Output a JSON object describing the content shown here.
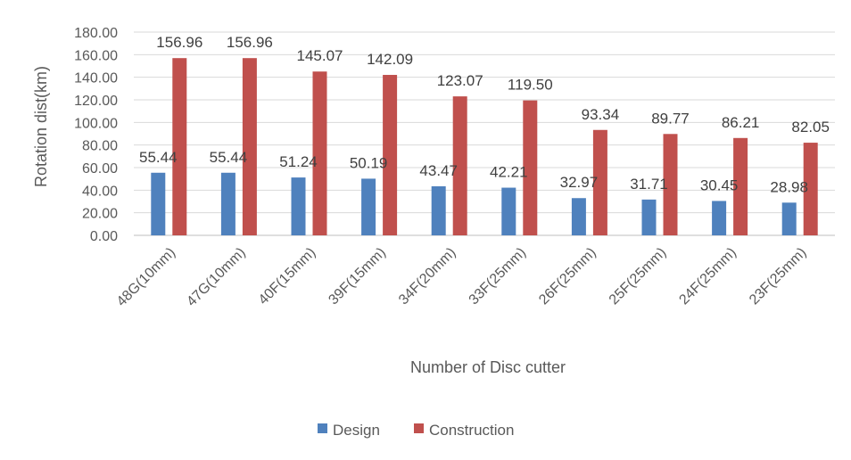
{
  "chart_data": {
    "type": "bar",
    "title": "",
    "xlabel": "Number  of Disc cutter",
    "ylabel": "Rotation dist(km)",
    "ylim": [
      0,
      180
    ],
    "yticks": [
      "0.00",
      "20.00",
      "40.00",
      "60.00",
      "80.00",
      "100.00",
      "120.00",
      "140.00",
      "160.00",
      "180.00"
    ],
    "grid": true,
    "legend_position": "bottom",
    "categories": [
      "48G(10mm)",
      "47G(10mm)",
      "40F(15mm)",
      "39F(15mm)",
      "34F(20mm)",
      "33F(25mm)",
      "26F(25mm)",
      "25F(25mm)",
      "24F(25mm)",
      "23F(25mm)"
    ],
    "series": [
      {
        "name": "Design",
        "color": "#4f81bd",
        "values": [
          55.44,
          55.44,
          51.24,
          50.19,
          43.47,
          42.21,
          32.97,
          31.71,
          30.45,
          28.98
        ],
        "labels": [
          "55.44",
          "55.44",
          "51.24",
          "50.19",
          "43.47",
          "42.21",
          "32.97",
          "31.71",
          "30.45",
          "28.98"
        ]
      },
      {
        "name": "Construction",
        "color": "#c0504d",
        "values": [
          156.96,
          156.96,
          145.07,
          142.09,
          123.07,
          119.5,
          93.34,
          89.77,
          86.21,
          82.05
        ],
        "labels": [
          "156.96",
          "156.96",
          "145.07",
          "142.09",
          "123.07",
          "119.50",
          "93.34",
          "89.77",
          "86.21",
          "82.05"
        ]
      }
    ]
  }
}
